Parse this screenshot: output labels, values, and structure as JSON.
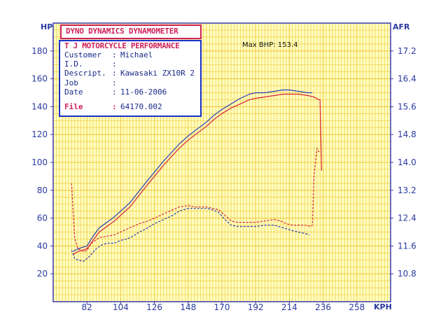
{
  "header": {
    "title": "DYNO DYNAMICS DYNAMOMETER",
    "company": "T J MOTORCYCLE PERFORMANCE"
  },
  "info": {
    "rows": [
      {
        "label": "Customer",
        "value": "Michael"
      },
      {
        "label": "I.D.",
        "value": ""
      },
      {
        "label": "Descript.",
        "value": "Kawasaki ZX10R 2"
      },
      {
        "label": "Job",
        "value": ""
      },
      {
        "label": "Date",
        "value": "11-06-2006"
      }
    ],
    "file_label": "File",
    "file_value": "64170.002"
  },
  "annotation": "Max BHP: 153.4",
  "colors": {
    "grid": "#f0c840",
    "axis": "#3a3ab0",
    "red": "#d8203a",
    "blue": "#2a3ab8",
    "background": "#ffffc0"
  },
  "chart_data": {
    "type": "line",
    "xlabel": "KPH",
    "ylabel": "HP",
    "y2label": "AFR",
    "xlim": [
      60,
      280
    ],
    "ylim": [
      0,
      200
    ],
    "y2lim": [
      10.0,
      18.0
    ],
    "xticks": [
      82,
      104,
      126,
      148,
      170,
      192,
      214,
      236,
      258
    ],
    "yticks": [
      20,
      40,
      60,
      80,
      100,
      120,
      140,
      160,
      180
    ],
    "y2ticks": [
      10.8,
      11.6,
      12.4,
      13.2,
      14.0,
      14.8,
      15.6,
      16.4,
      17.2
    ],
    "series": [
      {
        "axis": "y",
        "color": "red",
        "dash": false,
        "points": [
          [
            73,
            34
          ],
          [
            76,
            36
          ],
          [
            82,
            38
          ],
          [
            86,
            44
          ],
          [
            90,
            50
          ],
          [
            95,
            54
          ],
          [
            100,
            58
          ],
          [
            104,
            62
          ],
          [
            110,
            68
          ],
          [
            115,
            75
          ],
          [
            120,
            82
          ],
          [
            126,
            90
          ],
          [
            132,
            98
          ],
          [
            137,
            104
          ],
          [
            142,
            110
          ],
          [
            148,
            116
          ],
          [
            154,
            121
          ],
          [
            160,
            126
          ],
          [
            165,
            131
          ],
          [
            170,
            135
          ],
          [
            176,
            139
          ],
          [
            182,
            142
          ],
          [
            188,
            145
          ],
          [
            192,
            146
          ],
          [
            198,
            147
          ],
          [
            204,
            148
          ],
          [
            210,
            149
          ],
          [
            214,
            149
          ],
          [
            220,
            149
          ],
          [
            226,
            148
          ],
          [
            230,
            147
          ],
          [
            233,
            145
          ],
          [
            234,
            145
          ],
          [
            234.5,
            120
          ],
          [
            235,
            94
          ]
        ]
      },
      {
        "axis": "y",
        "color": "blue",
        "dash": false,
        "points": [
          [
            73,
            36
          ],
          [
            76,
            38
          ],
          [
            82,
            40
          ],
          [
            86,
            47
          ],
          [
            90,
            53
          ],
          [
            95,
            57
          ],
          [
            100,
            61
          ],
          [
            104,
            65
          ],
          [
            110,
            71
          ],
          [
            115,
            78
          ],
          [
            120,
            85
          ],
          [
            126,
            93
          ],
          [
            132,
            101
          ],
          [
            137,
            107
          ],
          [
            142,
            113
          ],
          [
            148,
            119
          ],
          [
            154,
            124
          ],
          [
            160,
            129
          ],
          [
            165,
            134
          ],
          [
            170,
            138
          ],
          [
            176,
            142
          ],
          [
            182,
            146
          ],
          [
            188,
            149
          ],
          [
            192,
            150
          ],
          [
            198,
            150
          ],
          [
            204,
            151
          ],
          [
            210,
            152
          ],
          [
            214,
            152
          ],
          [
            220,
            151
          ],
          [
            226,
            150
          ],
          [
            229,
            150
          ]
        ]
      },
      {
        "axis": "y",
        "color": "red",
        "dash": true,
        "points": [
          [
            72,
            85
          ],
          [
            73,
            64
          ],
          [
            74,
            46
          ],
          [
            76,
            38
          ],
          [
            80,
            36
          ],
          [
            82,
            37
          ],
          [
            85,
            42
          ],
          [
            90,
            46
          ],
          [
            95,
            47
          ],
          [
            100,
            48
          ],
          [
            104,
            50
          ],
          [
            110,
            53
          ],
          [
            116,
            56
          ],
          [
            122,
            58
          ],
          [
            126,
            60
          ],
          [
            132,
            63
          ],
          [
            138,
            66
          ],
          [
            142,
            68
          ],
          [
            148,
            69
          ],
          [
            152,
            68
          ],
          [
            156,
            68
          ],
          [
            160,
            68
          ],
          [
            164,
            67
          ],
          [
            168,
            66
          ],
          [
            172,
            62
          ],
          [
            176,
            58
          ],
          [
            180,
            57
          ],
          [
            186,
            57
          ],
          [
            192,
            57
          ],
          [
            198,
            58
          ],
          [
            204,
            59
          ],
          [
            208,
            58
          ],
          [
            212,
            56
          ],
          [
            216,
            55
          ],
          [
            220,
            55
          ],
          [
            224,
            55
          ],
          [
            228,
            54
          ],
          [
            229,
            55
          ],
          [
            230,
            90
          ],
          [
            232,
            110
          ],
          [
            233,
            108
          ],
          [
            234,
            107
          ]
        ]
      },
      {
        "axis": "y",
        "color": "blue",
        "dash": true,
        "points": [
          [
            72,
            37
          ],
          [
            74,
            31
          ],
          [
            76,
            30
          ],
          [
            80,
            29
          ],
          [
            84,
            33
          ],
          [
            88,
            38
          ],
          [
            92,
            41
          ],
          [
            96,
            42
          ],
          [
            100,
            42
          ],
          [
            104,
            44
          ],
          [
            108,
            45
          ],
          [
            112,
            47
          ],
          [
            116,
            50
          ],
          [
            120,
            52
          ],
          [
            126,
            56
          ],
          [
            132,
            59
          ],
          [
            138,
            62
          ],
          [
            142,
            65
          ],
          [
            148,
            67
          ],
          [
            152,
            67
          ],
          [
            156,
            67
          ],
          [
            160,
            67
          ],
          [
            164,
            66
          ],
          [
            168,
            64
          ],
          [
            172,
            59
          ],
          [
            176,
            55
          ],
          [
            180,
            54
          ],
          [
            186,
            54
          ],
          [
            192,
            54
          ],
          [
            198,
            55
          ],
          [
            204,
            55
          ],
          [
            210,
            53
          ],
          [
            216,
            51
          ],
          [
            220,
            50
          ],
          [
            224,
            49
          ],
          [
            227,
            48
          ]
        ]
      }
    ]
  }
}
